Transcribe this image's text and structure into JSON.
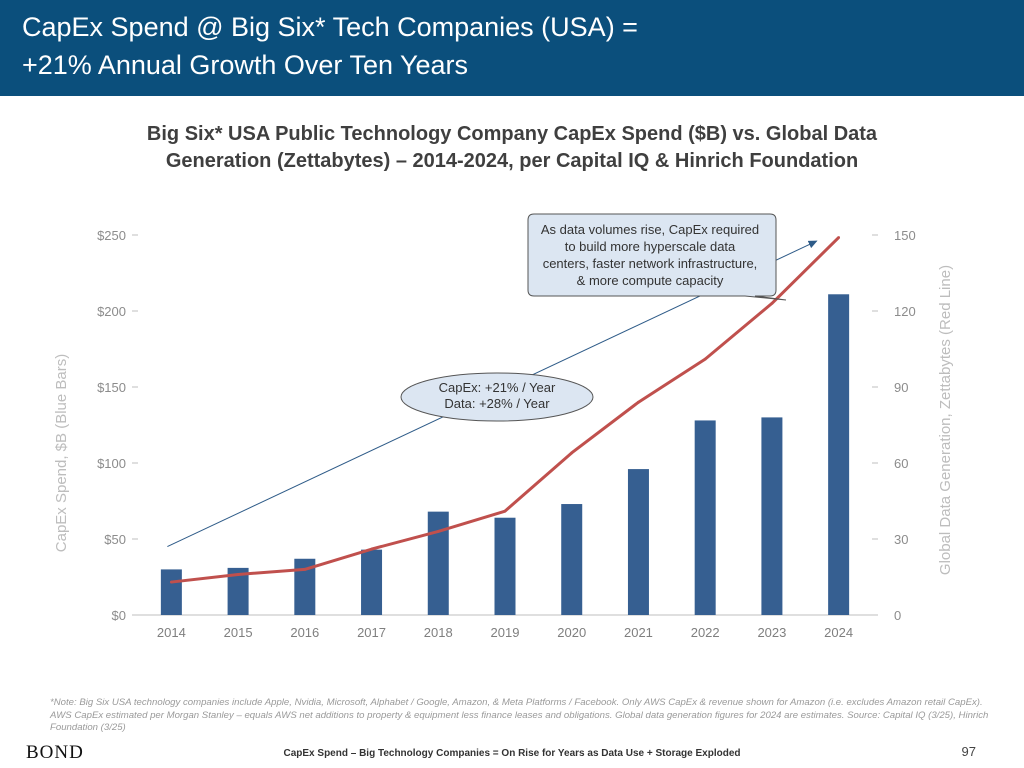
{
  "slide": {
    "title_line1": "CapEx Spend @ Big Six* Tech Companies (USA) =",
    "title_line2": "+21% Annual Growth Over Ten Years",
    "note": "*Note: Big Six USA technology companies include Apple, Nvidia, Microsoft, Alphabet / Google, Amazon, & Meta Platforms / Facebook. Only AWS CapEx & revenue shown for Amazon (i.e. excludes Amazon retail CapEx). AWS CapEx estimated per Morgan Stanley – equals AWS net additions to property & equipment less finance leases and obligations. Global data generation figures for 2024 are estimates. Source: Capital IQ (3/25), Hinrich Foundation (3/25)",
    "logo": "BOND",
    "footer": "CapEx Spend – Big Technology Companies = On Rise for Years as Data Use + Storage Exploded",
    "page_number": "97"
  },
  "colors": {
    "header": "#0b4f7c",
    "bars": "#365f91",
    "line": "#c0504d",
    "callout_fill": "#dce6f2",
    "arrow": "#2e5b88"
  },
  "chart_data": {
    "type": "bar",
    "title_line1": "Big Six* USA Public Technology Company CapEx Spend ($B) vs. Global Data",
    "title_line2": "Generation (Zettabytes) – 2014-2024, per Capital IQ & Hinrich Foundation",
    "categories": [
      "2014",
      "2015",
      "2016",
      "2017",
      "2018",
      "2019",
      "2020",
      "2021",
      "2022",
      "2023",
      "2024"
    ],
    "series": [
      {
        "values": [
          30,
          31,
          37,
          43,
          68,
          64,
          73,
          96,
          128,
          130,
          211
        ],
        "axis": "left",
        "mark": "bar"
      },
      {
        "values": [
          13,
          16,
          18,
          26,
          33,
          41,
          64,
          84,
          101,
          123,
          149
        ],
        "axis": "right",
        "mark": "line"
      }
    ],
    "y_left": {
      "label": "CapEx Spend, $B (Blue Bars)",
      "min": 0,
      "max": 250,
      "ticks": [
        0,
        50,
        100,
        150,
        200,
        250
      ],
      "tick_labels": [
        "$0",
        "$50",
        "$100",
        "$150",
        "$200",
        "$250"
      ]
    },
    "y_right": {
      "label": "Global Data Generation, Zettabytes (Red Line)",
      "min": 0,
      "max": 150,
      "ticks": [
        0,
        30,
        60,
        90,
        120,
        150
      ],
      "tick_labels": [
        "0",
        "30",
        "60",
        "90",
        "120",
        "150"
      ]
    },
    "grid": false,
    "trend_arrow": {
      "from": {
        "category": "2014",
        "left_value": 45
      },
      "to": {
        "category": "2024",
        "left_value": 246
      }
    },
    "annotations": {
      "growth_ellipse": [
        "CapEx: +21% / Year",
        "Data: +28% / Year"
      ],
      "callout": [
        "As data volumes rise, CapEx required",
        "to build more hyperscale data",
        "centers, faster network infrastructure,",
        "& more compute capacity"
      ]
    }
  }
}
